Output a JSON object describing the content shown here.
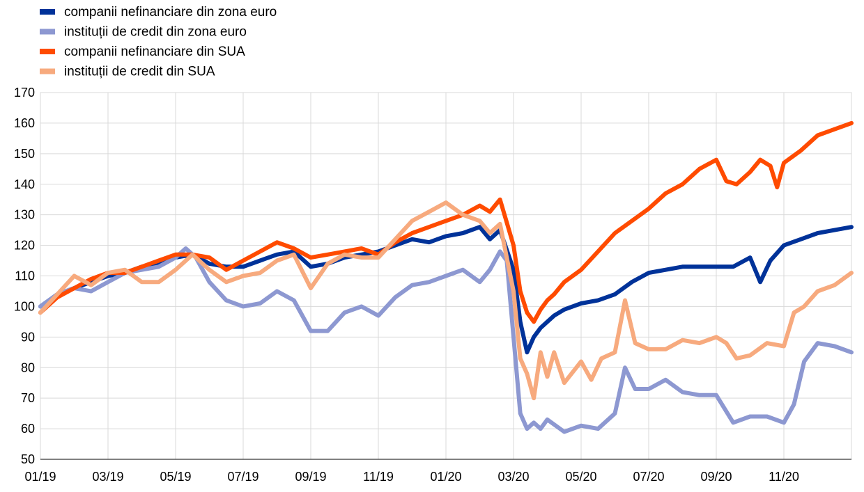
{
  "chart_data": {
    "type": "line",
    "title": "",
    "xlabel": "",
    "ylabel": "",
    "ylim": [
      50,
      170
    ],
    "yticks": [
      50,
      60,
      70,
      80,
      90,
      100,
      110,
      120,
      130,
      140,
      150,
      160,
      170
    ],
    "xlim": [
      0,
      24
    ],
    "xticks": [
      {
        "x": 0,
        "label": "01/19"
      },
      {
        "x": 2,
        "label": "03/19"
      },
      {
        "x": 4,
        "label": "05/19"
      },
      {
        "x": 6,
        "label": "07/19"
      },
      {
        "x": 8,
        "label": "09/19"
      },
      {
        "x": 10,
        "label": "11/19"
      },
      {
        "x": 12,
        "label": "01/20"
      },
      {
        "x": 14,
        "label": "03/20"
      },
      {
        "x": 16,
        "label": "05/20"
      },
      {
        "x": 18,
        "label": "07/20"
      },
      {
        "x": 20,
        "label": "09/20"
      },
      {
        "x": 22,
        "label": "11/20"
      }
    ],
    "grid": "horizontal and vertical",
    "legend_position": "top-left",
    "series": [
      {
        "name": "companii nefinanciare din zona euro",
        "color": "#003299",
        "x": [
          0,
          0.5,
          1,
          1.5,
          2,
          2.5,
          3,
          3.5,
          4,
          4.5,
          5,
          5.5,
          6,
          6.5,
          7,
          7.5,
          8,
          8.5,
          9,
          9.5,
          10,
          10.5,
          11,
          11.5,
          12,
          12.5,
          13,
          13.3,
          13.6,
          14,
          14.2,
          14.4,
          14.6,
          14.8,
          15,
          15.2,
          15.5,
          16,
          16.5,
          17,
          17.5,
          18,
          18.5,
          19,
          19.5,
          20,
          20.5,
          21,
          21.3,
          21.6,
          22,
          22.5,
          23,
          23.5,
          24
        ],
        "values": [
          100,
          104,
          106,
          108,
          110,
          111,
          113,
          114,
          116,
          117,
          114,
          113,
          113,
          115,
          117,
          118,
          113,
          114,
          116,
          117,
          118,
          120,
          122,
          121,
          123,
          124,
          126,
          122,
          125,
          112,
          95,
          85,
          90,
          93,
          95,
          97,
          99,
          101,
          102,
          104,
          108,
          111,
          112,
          113,
          113,
          113,
          113,
          116,
          108,
          115,
          120,
          122,
          124,
          125,
          126
        ]
      },
      {
        "name": "instituții de credit din zona euro",
        "color": "#8d98d1",
        "x": [
          0,
          0.5,
          1,
          1.5,
          2,
          2.5,
          3,
          3.5,
          4,
          4.3,
          4.6,
          5,
          5.5,
          6,
          6.5,
          7,
          7.5,
          8,
          8.5,
          9,
          9.5,
          10,
          10.5,
          11,
          11.5,
          12,
          12.5,
          13,
          13.3,
          13.6,
          13.8,
          14,
          14.2,
          14.4,
          14.6,
          14.8,
          15,
          15.5,
          16,
          16.5,
          17,
          17.3,
          17.6,
          18,
          18.5,
          19,
          19.5,
          20,
          20.5,
          21,
          21.5,
          22,
          22.3,
          22.6,
          23,
          23.5,
          24
        ],
        "values": [
          100,
          104,
          106,
          105,
          108,
          111,
          112,
          113,
          116,
          119,
          116,
          108,
          102,
          100,
          101,
          105,
          102,
          92,
          92,
          98,
          100,
          97,
          103,
          107,
          108,
          110,
          112,
          108,
          112,
          118,
          115,
          90,
          65,
          60,
          62,
          60,
          63,
          59,
          61,
          60,
          65,
          80,
          73,
          73,
          76,
          72,
          71,
          71,
          62,
          64,
          64,
          62,
          68,
          82,
          88,
          87,
          85
        ]
      },
      {
        "name": "companii nefinanciare din SUA",
        "color": "#ff4b00",
        "x": [
          0,
          0.5,
          1,
          1.5,
          2,
          2.5,
          3,
          3.5,
          4,
          4.5,
          5,
          5.5,
          6,
          6.5,
          7,
          7.5,
          8,
          8.5,
          9,
          9.5,
          10,
          10.5,
          11,
          11.5,
          12,
          12.5,
          13,
          13.3,
          13.6,
          14,
          14.2,
          14.4,
          14.6,
          14.8,
          15,
          15.2,
          15.5,
          16,
          16.5,
          17,
          17.5,
          18,
          18.5,
          19,
          19.5,
          20,
          20.3,
          20.6,
          21,
          21.3,
          21.6,
          21.8,
          22,
          22.5,
          23,
          23.5,
          24
        ],
        "values": [
          98,
          103,
          106,
          109,
          111,
          111,
          113,
          115,
          117,
          117,
          116,
          112,
          115,
          118,
          121,
          119,
          116,
          117,
          118,
          119,
          117,
          121,
          124,
          126,
          128,
          130,
          133,
          131,
          135,
          120,
          105,
          98,
          95,
          99,
          102,
          104,
          108,
          112,
          118,
          124,
          128,
          132,
          137,
          140,
          145,
          148,
          141,
          140,
          144,
          148,
          146,
          139,
          147,
          151,
          156,
          158,
          160
        ]
      },
      {
        "name": "instituții de credit din SUA",
        "color": "#f7aa7e",
        "x": [
          0,
          0.5,
          1,
          1.5,
          2,
          2.5,
          3,
          3.5,
          4,
          4.5,
          5,
          5.5,
          6,
          6.5,
          7,
          7.5,
          8,
          8.5,
          9,
          9.5,
          10,
          10.5,
          11,
          11.5,
          12,
          12.5,
          13,
          13.3,
          13.6,
          14,
          14.2,
          14.4,
          14.6,
          14.8,
          15,
          15.2,
          15.5,
          16,
          16.3,
          16.6,
          17,
          17.3,
          17.6,
          18,
          18.5,
          19,
          19.5,
          20,
          20.3,
          20.6,
          21,
          21.5,
          22,
          22.3,
          22.6,
          23,
          23.5,
          24
        ],
        "values": [
          98,
          104,
          110,
          107,
          111,
          112,
          108,
          108,
          112,
          117,
          112,
          108,
          110,
          111,
          115,
          117,
          106,
          114,
          117,
          116,
          116,
          122,
          128,
          131,
          134,
          130,
          128,
          124,
          127,
          105,
          83,
          78,
          70,
          85,
          77,
          85,
          75,
          82,
          76,
          83,
          85,
          102,
          88,
          86,
          86,
          89,
          88,
          90,
          88,
          83,
          84,
          88,
          87,
          98,
          100,
          105,
          107,
          111
        ]
      }
    ]
  }
}
